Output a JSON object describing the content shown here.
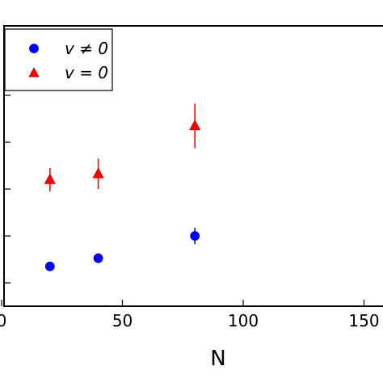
{
  "chart_data": {
    "type": "scatter",
    "xlabel": "N",
    "ylabel": "",
    "title": "",
    "xlim": [
      0,
      160
    ],
    "ylim": [
      0,
      100
    ],
    "x_ticks": [
      0,
      50,
      100,
      150
    ],
    "x_tick_labels": [
      "0",
      "50",
      "100",
      "150"
    ],
    "y_ticks": [
      10,
      30,
      50,
      70,
      90
    ],
    "grid": false,
    "legend_position": "top-left",
    "series": [
      {
        "name": "v ≠ 0",
        "marker": "circle",
        "color": "#0000ff",
        "x": [
          20,
          40,
          80
        ],
        "y": [
          17,
          20.5,
          30
        ],
        "yerr": [
          1,
          2,
          3.5
        ]
      },
      {
        "name": "v = 0",
        "marker": "triangle",
        "color": "#ff0000",
        "x": [
          20,
          40,
          80
        ],
        "y": [
          54,
          56.5,
          77
        ],
        "yerr": [
          5,
          6.5,
          9.5
        ]
      }
    ]
  }
}
